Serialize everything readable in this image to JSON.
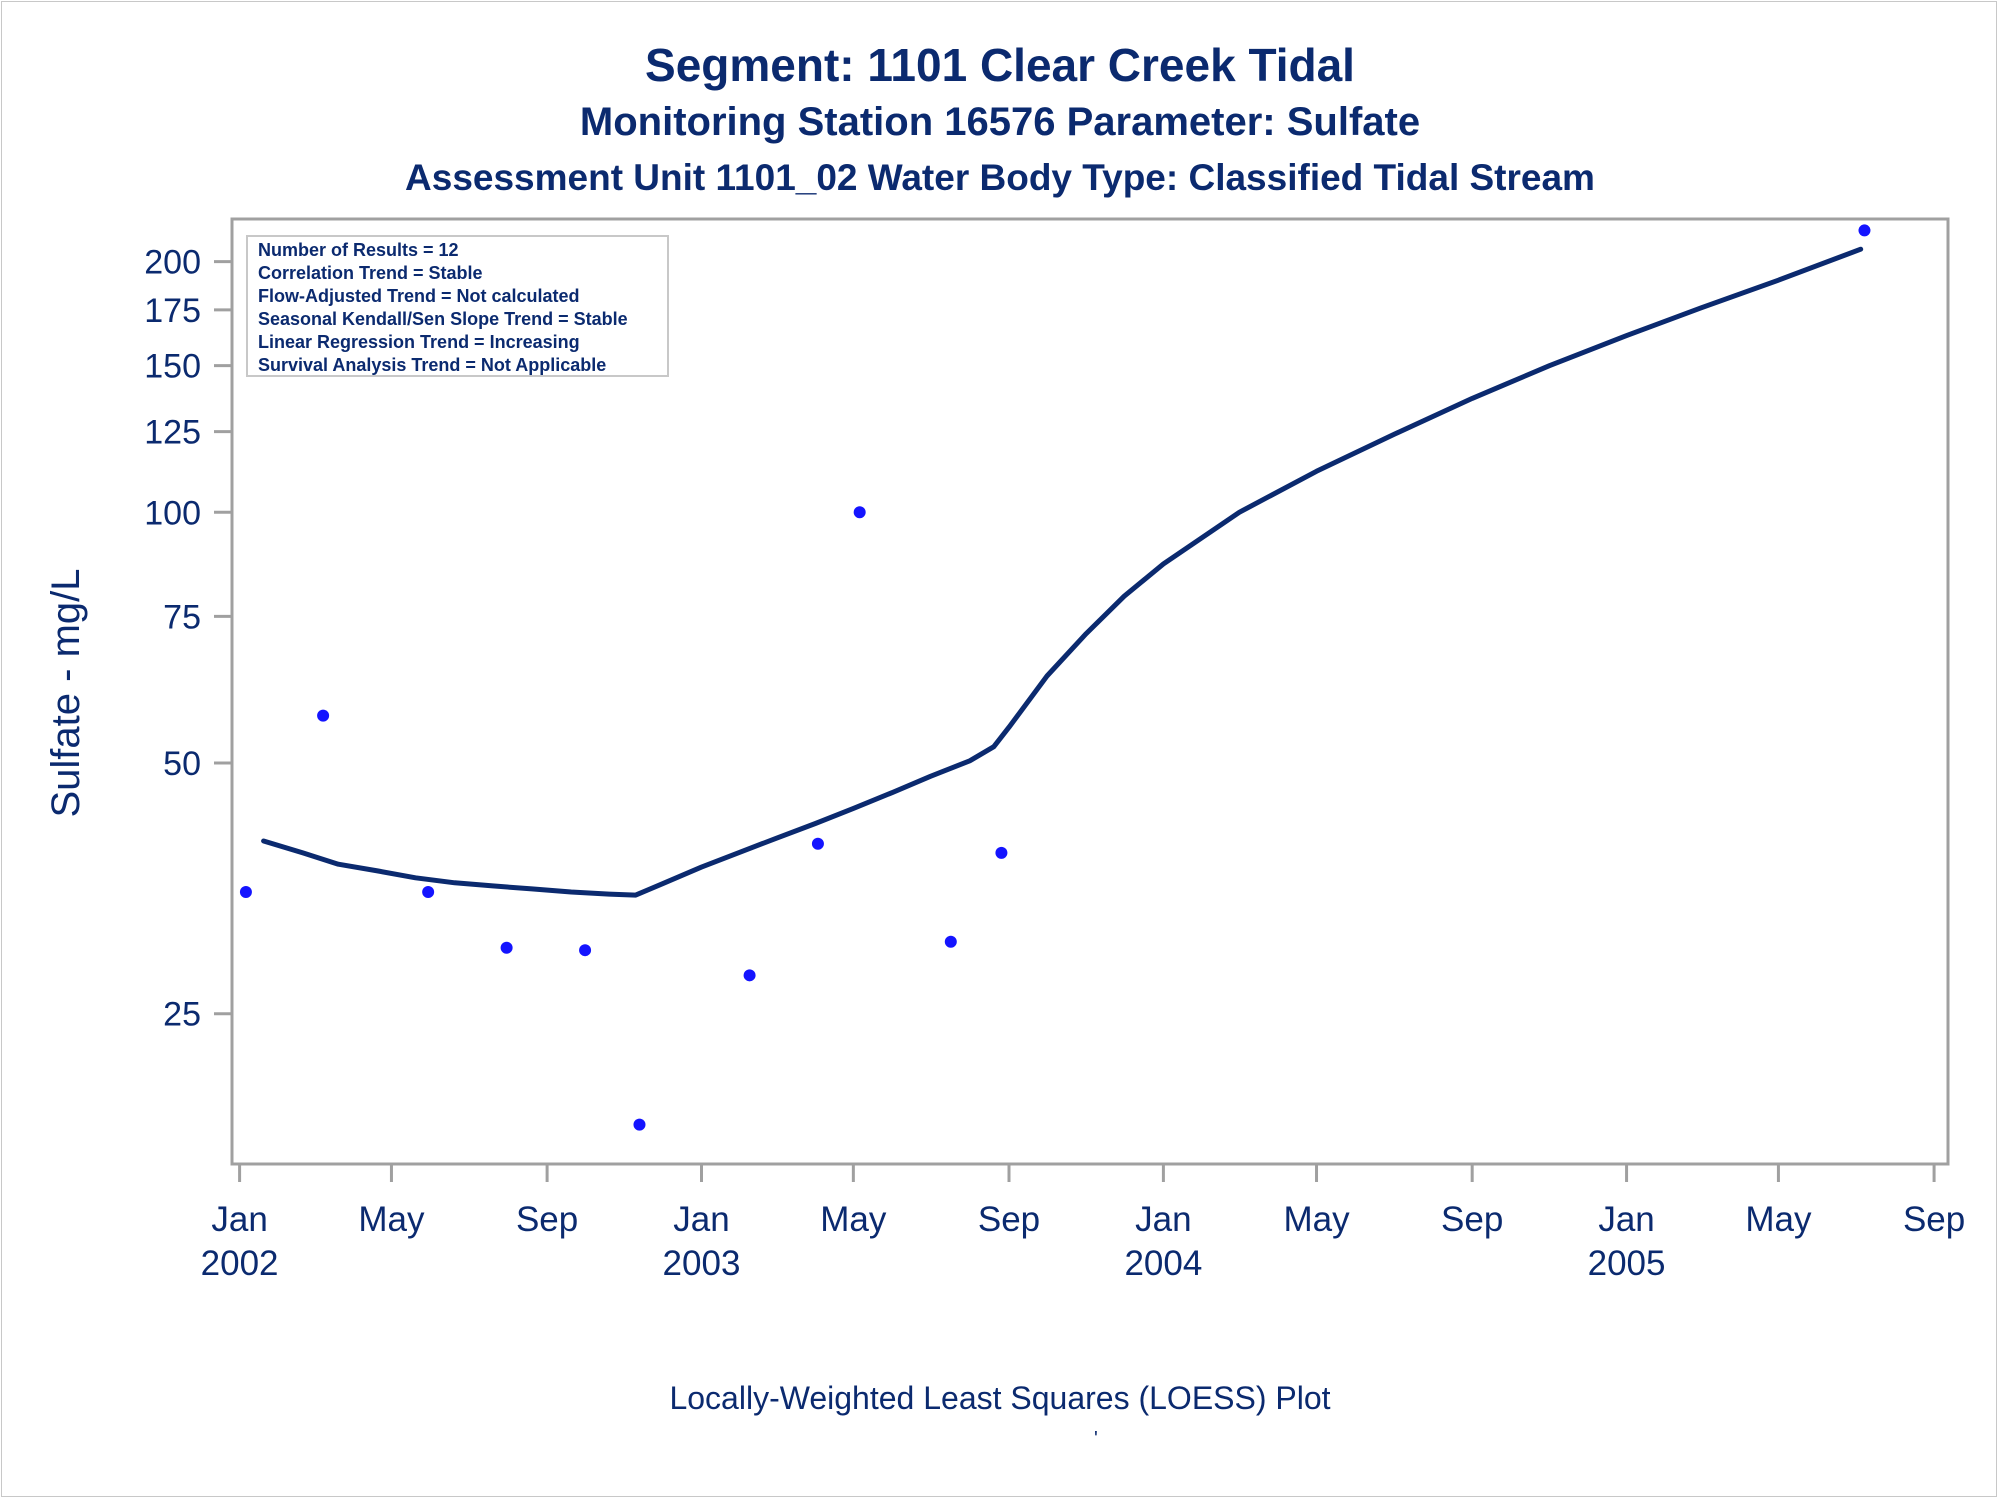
{
  "chart_data": {
    "type": "scatter",
    "title": "Segment: 1101  Clear Creek Tidal",
    "subtitle": "Monitoring Station 16576 Parameter: Sulfate",
    "subtitle2": "Assessment Unit 1101_02   Water Body Type: Classified Tidal Stream",
    "ylabel": "Sulfate - mg/L",
    "xlabel": "",
    "footnote": "Locally-Weighted Least Squares (LOESS) Plot",
    "footnote_mark": "'",
    "y_scale": "log",
    "ylim": [
      16.5,
      225
    ],
    "xlim": [
      "2001-12-26",
      "2005-09-12"
    ],
    "y_ticks": [
      25,
      50,
      75,
      100,
      125,
      150,
      175,
      200
    ],
    "x_ticks": [
      {
        "date": "2002-01-01",
        "label": "Jan",
        "year": "2002"
      },
      {
        "date": "2002-05-01",
        "label": "May",
        "year": ""
      },
      {
        "date": "2002-09-01",
        "label": "Sep",
        "year": ""
      },
      {
        "date": "2003-01-01",
        "label": "Jan",
        "year": "2003"
      },
      {
        "date": "2003-05-01",
        "label": "May",
        "year": ""
      },
      {
        "date": "2003-09-01",
        "label": "Sep",
        "year": ""
      },
      {
        "date": "2004-01-01",
        "label": "Jan",
        "year": "2004"
      },
      {
        "date": "2004-05-01",
        "label": "May",
        "year": ""
      },
      {
        "date": "2004-09-01",
        "label": "Sep",
        "year": ""
      },
      {
        "date": "2005-01-01",
        "label": "Jan",
        "year": "2005"
      },
      {
        "date": "2005-05-01",
        "label": "May",
        "year": ""
      },
      {
        "date": "2005-09-01",
        "label": "Sep",
        "year": ""
      }
    ],
    "grid": false,
    "legend_placement": "top-left",
    "stats_box": [
      "Number of Results = 12",
      "Correlation Trend = Stable",
      "Flow-Adjusted Trend = Not calculated",
      "Seasonal Kendall/Sen Slope Trend = Stable",
      "Linear Regression Trend = Increasing",
      "Survival Analysis Trend = Not Applicable"
    ],
    "points": [
      {
        "x": "2002-01-06",
        "y": 35
      },
      {
        "x": "2002-03-08",
        "y": 57
      },
      {
        "x": "2002-05-30",
        "y": 35
      },
      {
        "x": "2002-07-31",
        "y": 30
      },
      {
        "x": "2002-10-01",
        "y": 29.8
      },
      {
        "x": "2002-11-13",
        "y": 18.4
      },
      {
        "x": "2003-02-08",
        "y": 27.8
      },
      {
        "x": "2003-04-03",
        "y": 40
      },
      {
        "x": "2003-05-06",
        "y": 100
      },
      {
        "x": "2003-07-17",
        "y": 30.5
      },
      {
        "x": "2003-08-26",
        "y": 39
      },
      {
        "x": "2005-07-08",
        "y": 218
      }
    ],
    "loess_curve": [
      {
        "x": "2002-01-20",
        "y": 40.3
      },
      {
        "x": "2002-02-20",
        "y": 39.0
      },
      {
        "x": "2002-03-20",
        "y": 37.8
      },
      {
        "x": "2002-04-20",
        "y": 37.1
      },
      {
        "x": "2002-05-20",
        "y": 36.4
      },
      {
        "x": "2002-06-20",
        "y": 35.9
      },
      {
        "x": "2002-07-20",
        "y": 35.6
      },
      {
        "x": "2002-08-20",
        "y": 35.3
      },
      {
        "x": "2002-09-20",
        "y": 35.0
      },
      {
        "x": "2002-10-20",
        "y": 34.8
      },
      {
        "x": "2002-11-10",
        "y": 34.7
      },
      {
        "x": "2002-12-01",
        "y": 35.8
      },
      {
        "x": "2003-01-01",
        "y": 37.5
      },
      {
        "x": "2003-02-01",
        "y": 39.1
      },
      {
        "x": "2003-03-01",
        "y": 40.6
      },
      {
        "x": "2003-04-01",
        "y": 42.3
      },
      {
        "x": "2003-05-01",
        "y": 44.1
      },
      {
        "x": "2003-06-01",
        "y": 46.1
      },
      {
        "x": "2003-07-01",
        "y": 48.2
      },
      {
        "x": "2003-08-01",
        "y": 50.3
      },
      {
        "x": "2003-08-20",
        "y": 52.3
      },
      {
        "x": "2003-09-01",
        "y": 55.2
      },
      {
        "x": "2003-10-01",
        "y": 63.6
      },
      {
        "x": "2003-11-01",
        "y": 71.5
      },
      {
        "x": "2003-12-01",
        "y": 79.3
      },
      {
        "x": "2004-01-01",
        "y": 86.7
      },
      {
        "x": "2004-03-01",
        "y": 100
      },
      {
        "x": "2004-05-01",
        "y": 112
      },
      {
        "x": "2004-07-01",
        "y": 124
      },
      {
        "x": "2004-09-01",
        "y": 137
      },
      {
        "x": "2004-11-01",
        "y": 150
      },
      {
        "x": "2005-01-01",
        "y": 163
      },
      {
        "x": "2005-03-01",
        "y": 176
      },
      {
        "x": "2005-05-01",
        "y": 190
      },
      {
        "x": "2005-07-05",
        "y": 207
      }
    ],
    "colors": {
      "text": "#0b2a6f",
      "points": "#1414ff",
      "line": "#0b2a6f",
      "axis": "#a0a0a0"
    }
  }
}
